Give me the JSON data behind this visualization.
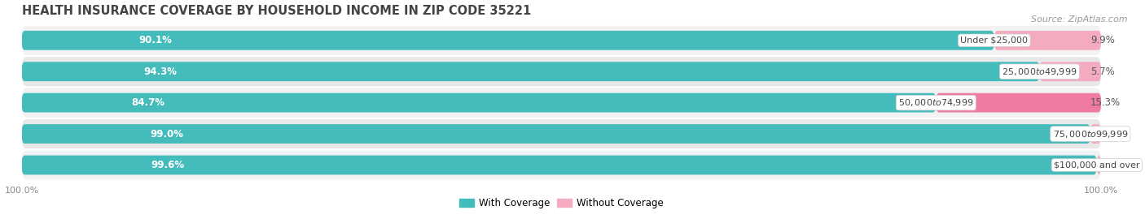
{
  "title": "HEALTH INSURANCE COVERAGE BY HOUSEHOLD INCOME IN ZIP CODE 35221",
  "source": "Source: ZipAtlas.com",
  "categories": [
    "Under $25,000",
    "$25,000 to $49,999",
    "$50,000 to $74,999",
    "$75,000 to $99,999",
    "$100,000 and over"
  ],
  "with_coverage": [
    90.1,
    94.3,
    84.7,
    99.0,
    99.6
  ],
  "without_coverage": [
    9.9,
    5.7,
    15.3,
    0.98,
    0.4
  ],
  "color_with": "#45BCBC",
  "color_without": "#F07BA0",
  "color_without_light": "#F4AABF",
  "row_bg_color_odd": "#F2F2F2",
  "row_bg_color_even": "#E8E8E8",
  "title_fontsize": 10.5,
  "label_fontsize": 8.5,
  "tick_fontsize": 8,
  "source_fontsize": 8,
  "legend_fontsize": 8.5,
  "bg_color": "#FFFFFF",
  "left_label": "100.0%",
  "right_label": "100.0%"
}
